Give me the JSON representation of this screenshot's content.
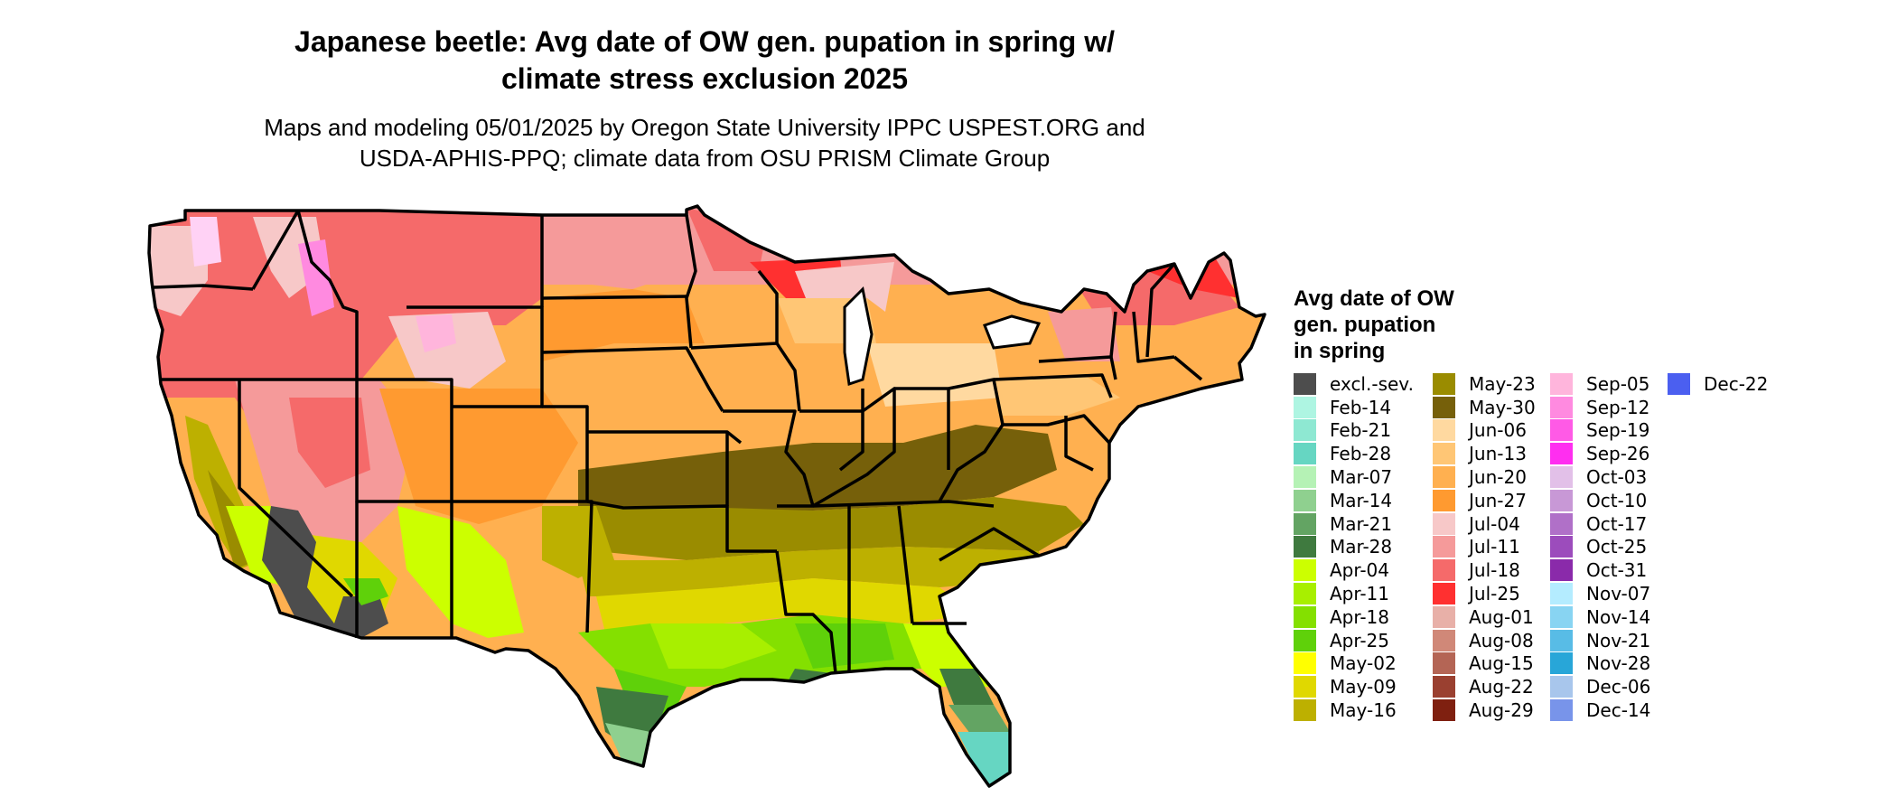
{
  "map": {
    "title_line1": "Japanese beetle: Avg date of OW gen. pupation in spring w/",
    "title_line2": "climate stress exclusion 2025",
    "subtitle_line1": "Maps and modeling 05/01/2025 by Oregon State University IPPC USPEST.ORG and",
    "subtitle_line2": "USDA-APHIS-PPQ; climate data from OSU PRISM Climate Group"
  },
  "legend": {
    "title_lines": [
      "Avg date of OW",
      "gen. pupation",
      "in spring"
    ],
    "columns": [
      [
        {
          "label": "excl.-sev.",
          "color": "#4d4d4d"
        },
        {
          "label": "Feb-14",
          "color": "#aef5e2"
        },
        {
          "label": "Feb-21",
          "color": "#8ee8d2"
        },
        {
          "label": "Feb-28",
          "color": "#66d6c2"
        },
        {
          "label": "Mar-07",
          "color": "#b5f2b5"
        },
        {
          "label": "Mar-14",
          "color": "#8fd08f"
        },
        {
          "label": "Mar-21",
          "color": "#63a463"
        },
        {
          "label": "Mar-28",
          "color": "#3f7a3f"
        },
        {
          "label": "Apr-04",
          "color": "#ccff00"
        },
        {
          "label": "Apr-11",
          "color": "#a8ef00"
        },
        {
          "label": "Apr-18",
          "color": "#84e000"
        },
        {
          "label": "Apr-25",
          "color": "#5fd10a"
        },
        {
          "label": "May-02",
          "color": "#ffff00"
        },
        {
          "label": "May-09",
          "color": "#e0d800"
        },
        {
          "label": "May-16",
          "color": "#bdb000"
        }
      ],
      [
        {
          "label": "May-23",
          "color": "#9a8c00"
        },
        {
          "label": "May-30",
          "color": "#76600a"
        },
        {
          "label": "Jun-06",
          "color": "#ffd9a0"
        },
        {
          "label": "Jun-13",
          "color": "#ffc675"
        },
        {
          "label": "Jun-20",
          "color": "#ffb050"
        },
        {
          "label": "Jun-27",
          "color": "#ff9a30"
        },
        {
          "label": "Jul-04",
          "color": "#f7c8c8"
        },
        {
          "label": "Jul-11",
          "color": "#f59a9a"
        },
        {
          "label": "Jul-18",
          "color": "#f56a6a"
        },
        {
          "label": "Jul-25",
          "color": "#ff3030"
        },
        {
          "label": "Aug-01",
          "color": "#e8b0a8"
        },
        {
          "label": "Aug-08",
          "color": "#d08878"
        },
        {
          "label": "Aug-15",
          "color": "#b46555"
        },
        {
          "label": "Aug-22",
          "color": "#9a4030"
        },
        {
          "label": "Aug-29",
          "color": "#7f2010"
        }
      ],
      [
        {
          "label": "Sep-05",
          "color": "#ffb5dc"
        },
        {
          "label": "Sep-12",
          "color": "#ff8ae0"
        },
        {
          "label": "Sep-19",
          "color": "#ff5ae6"
        },
        {
          "label": "Sep-26",
          "color": "#ff2ef0"
        },
        {
          "label": "Oct-03",
          "color": "#e2c0e8"
        },
        {
          "label": "Oct-10",
          "color": "#c898d6"
        },
        {
          "label": "Oct-17",
          "color": "#b070c8"
        },
        {
          "label": "Oct-25",
          "color": "#9c4cbc"
        },
        {
          "label": "Oct-31",
          "color": "#8a2aaa"
        },
        {
          "label": "Nov-07",
          "color": "#b4ecff"
        },
        {
          "label": "Nov-14",
          "color": "#88d4f2"
        },
        {
          "label": "Nov-21",
          "color": "#58bce6"
        },
        {
          "label": "Nov-28",
          "color": "#28a6d8"
        },
        {
          "label": "Dec-06",
          "color": "#a8c6ec"
        },
        {
          "label": "Dec-14",
          "color": "#7894ea"
        }
      ],
      [
        {
          "label": "Dec-22",
          "color": "#4b5ff0"
        }
      ]
    ]
  }
}
